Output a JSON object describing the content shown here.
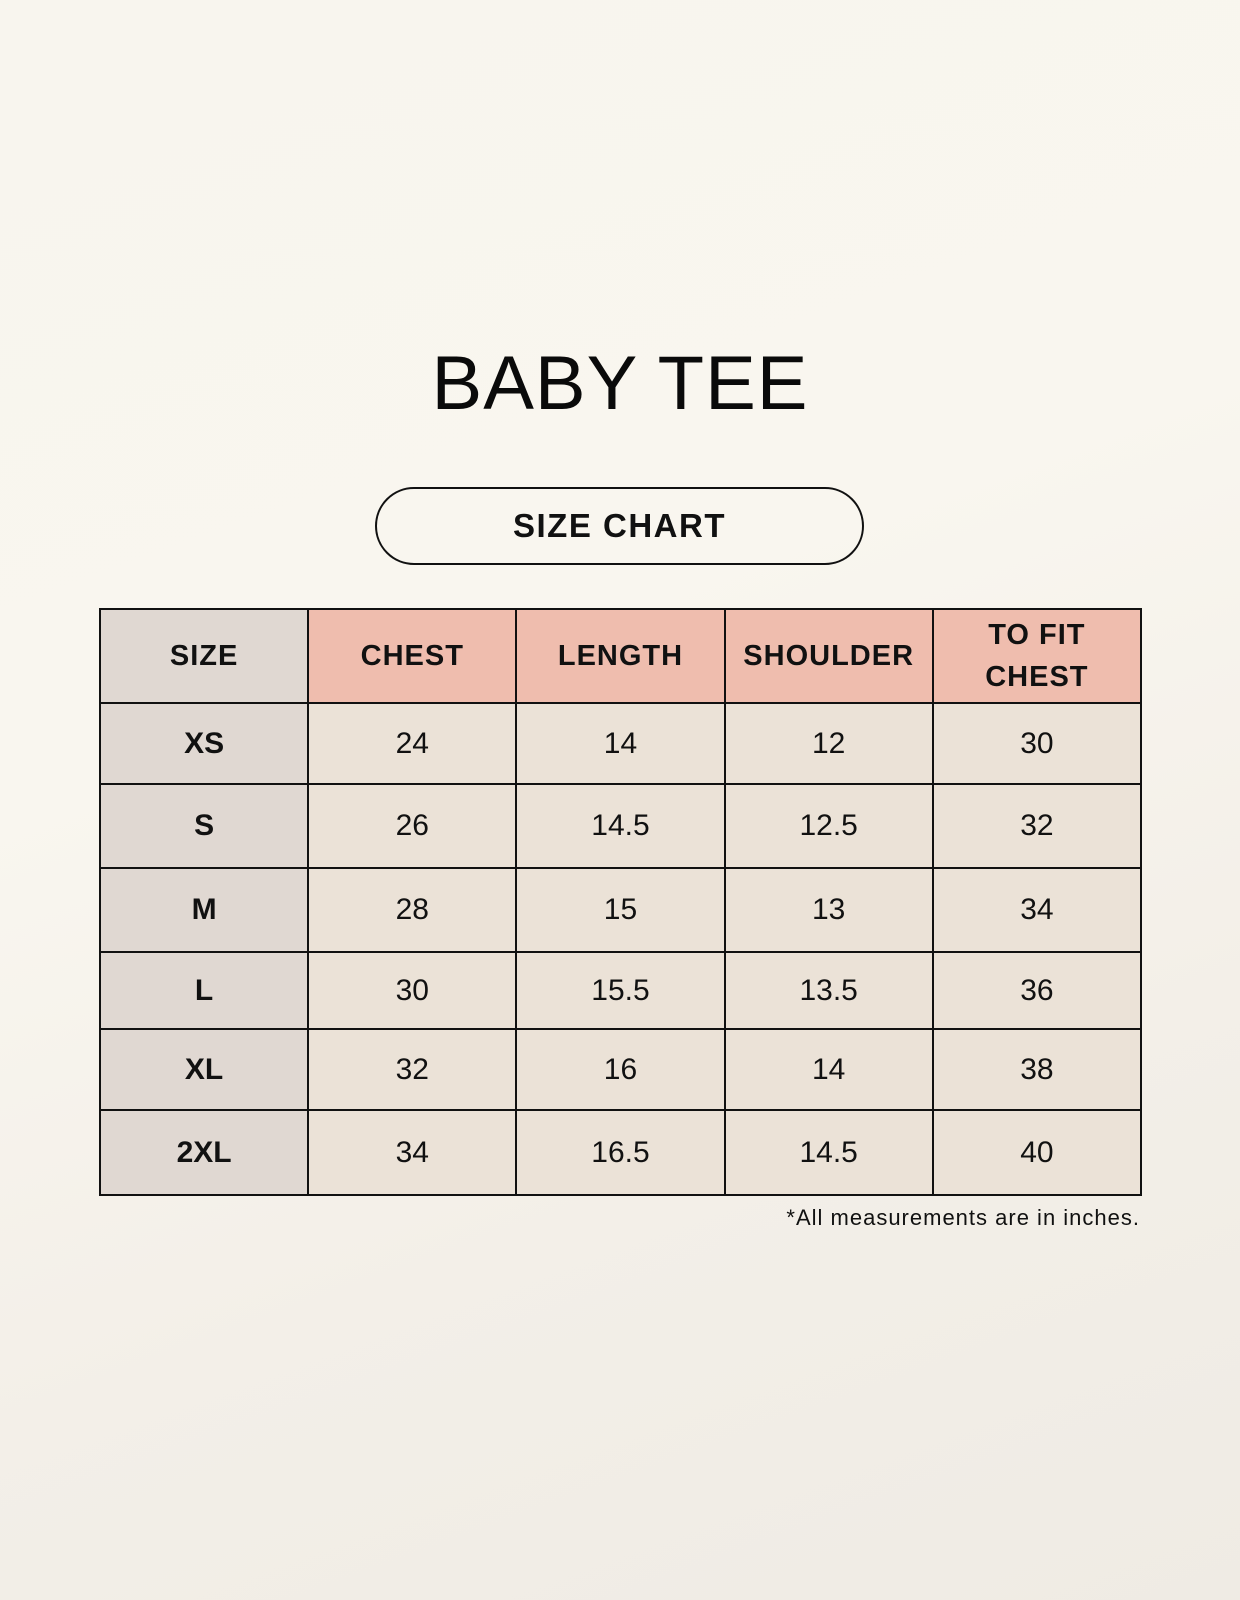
{
  "title": "BABY TEE",
  "subtitle": "SIZE CHART",
  "table": {
    "headers": [
      "SIZE",
      "CHEST",
      "LENGTH",
      "SHOULDER",
      "TO FIT CHEST"
    ],
    "rows": [
      [
        "XS",
        "24",
        "14",
        "12",
        "30"
      ],
      [
        "S",
        "26",
        "14.5",
        "12.5",
        "32"
      ],
      [
        "M",
        "28",
        "15",
        "13",
        "34"
      ],
      [
        "L",
        "30",
        "15.5",
        "13.5",
        "36"
      ],
      [
        "XL",
        "32",
        "16",
        "14",
        "38"
      ],
      [
        "2XL",
        "34",
        "16.5",
        "14.5",
        "40"
      ]
    ]
  },
  "footnote": "*All measurements are in inches.",
  "colors": {
    "header_accent": "#efbdae",
    "size_column": "#e0d8d2",
    "cell": "#ebe2d7"
  }
}
